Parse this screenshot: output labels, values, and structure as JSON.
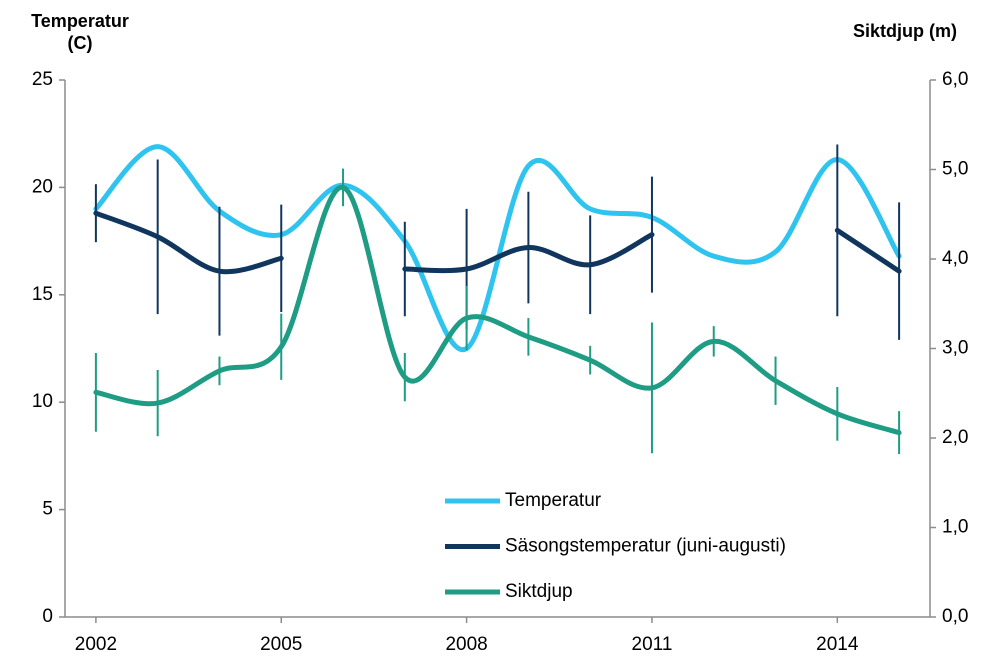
{
  "chart_data": {
    "type": "line",
    "y_label": "Temperatur (C)",
    "y2_label": "Siktdjup (m)",
    "x": [
      2002,
      2003,
      2004,
      2005,
      2006,
      2007,
      2008,
      2009,
      2010,
      2011,
      2012,
      2013,
      2014,
      2015
    ],
    "xlim": [
      2001.5,
      2015.5
    ],
    "xticks": [
      2002,
      2005,
      2008,
      2011,
      2014
    ],
    "ylim": [
      0,
      25
    ],
    "yticks": [
      0,
      5,
      10,
      15,
      20,
      25
    ],
    "y2lim": [
      0,
      6
    ],
    "y2ticks": [
      {
        "value": 0,
        "label": "0,0"
      },
      {
        "value": 1,
        "label": "1,0"
      },
      {
        "value": 2,
        "label": "2,0"
      },
      {
        "value": 3,
        "label": "3,0"
      },
      {
        "value": 4,
        "label": "4,0"
      },
      {
        "value": 5,
        "label": "5,0"
      },
      {
        "value": 6,
        "label": "6,0"
      }
    ],
    "grid": false,
    "legend": "lower center",
    "series": [
      {
        "name": "Temperatur",
        "color": "#2ec4ef",
        "values": [
          19.0,
          21.9,
          18.9,
          17.8,
          20.1,
          17.5,
          12.5,
          21.0,
          19.0,
          18.6,
          16.8,
          17.0,
          21.3,
          16.8
        ]
      },
      {
        "name": "Säsongstemperatur (juni-augusti)",
        "color": "#11365e",
        "values": [
          18.8,
          17.7,
          16.1,
          16.7,
          null,
          16.2,
          16.2,
          17.2,
          16.4,
          17.8,
          null,
          null,
          18.0,
          16.1
        ],
        "errors": [
          1.35,
          3.6,
          3.0,
          2.5,
          null,
          2.2,
          2.8,
          2.6,
          2.3,
          2.7,
          null,
          null,
          4.0,
          3.2
        ]
      },
      {
        "name": "Siktdjup",
        "color": "#1e9c84",
        "axis": "y2",
        "values": [
          2.51,
          2.39,
          2.75,
          3.02,
          4.8,
          2.68,
          3.34,
          3.13,
          2.87,
          2.56,
          3.08,
          2.64,
          2.27,
          2.06
        ],
        "errors": [
          0.44,
          0.37,
          0.16,
          0.37,
          0.21,
          0.27,
          0.36,
          0.21,
          0.16,
          0.73,
          0.17,
          0.27,
          0.3,
          0.24
        ]
      }
    ]
  }
}
